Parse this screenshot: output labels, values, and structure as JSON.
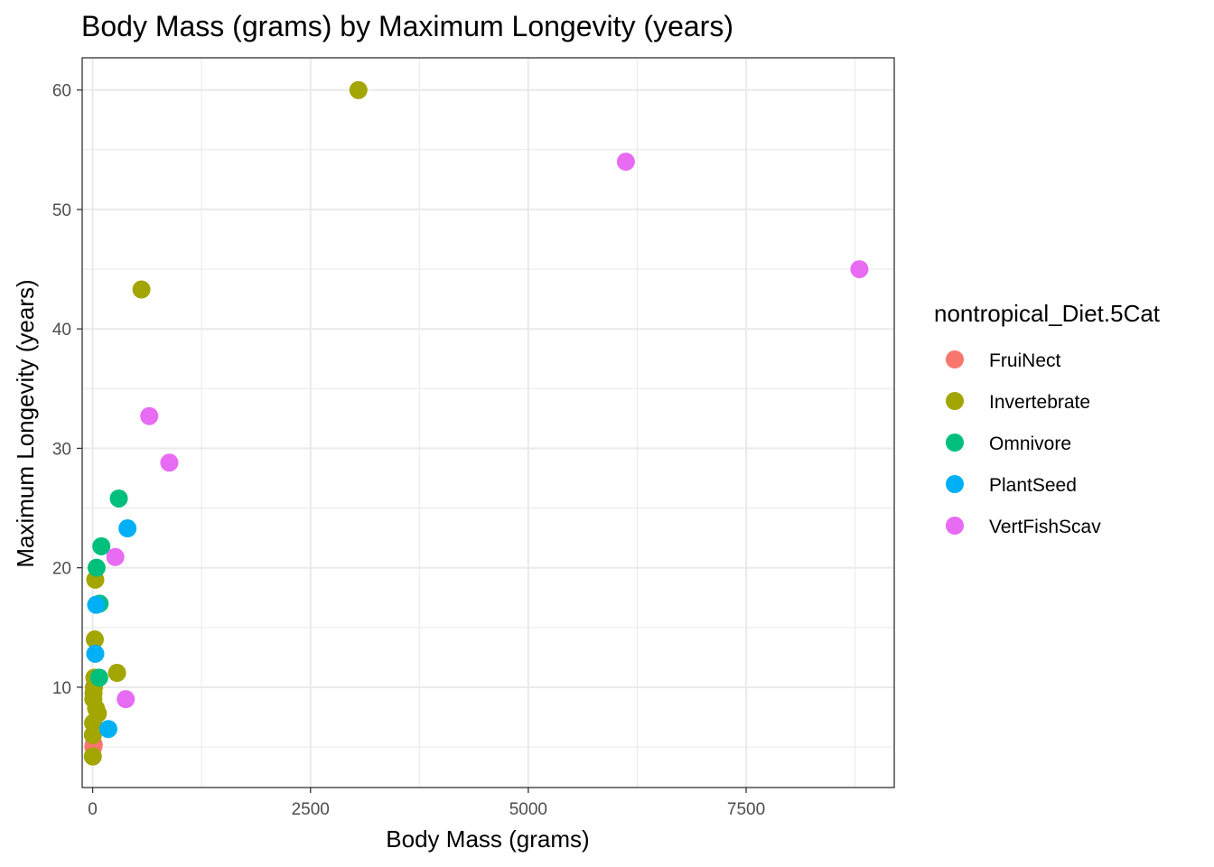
{
  "chart_data": {
    "type": "scatter",
    "title": "Body Mass (grams) by Maximum Longevity (years)",
    "xlabel": "Body Mass (grams)",
    "ylabel": "Maximum Longevity (years)",
    "xlim": [
      -120,
      9200
    ],
    "ylim": [
      1.6,
      62.7
    ],
    "x_ticks": [
      0,
      2500,
      5000,
      7500
    ],
    "y_ticks": [
      10,
      20,
      30,
      40,
      50,
      60
    ],
    "x_tick_labels": [
      "0",
      "2500",
      "5000",
      "7500"
    ],
    "y_tick_labels": [
      "10",
      "20",
      "30",
      "40",
      "50",
      "60"
    ],
    "grid": true,
    "legend": {
      "title": "nontropical_Diet.5Cat",
      "position": "right"
    },
    "series": [
      {
        "name": "FruiNect",
        "color": "#F8766D",
        "points": [
          [
            8,
            5.0
          ],
          [
            12,
            5.2
          ]
        ]
      },
      {
        "name": "Invertebrate",
        "color": "#A3A500",
        "points": [
          [
            3050,
            60
          ],
          [
            560,
            43.3
          ],
          [
            30,
            19
          ],
          [
            25,
            14
          ],
          [
            20,
            10.8
          ],
          [
            15,
            10
          ],
          [
            10,
            9.5
          ],
          [
            8,
            9
          ],
          [
            40,
            8.2
          ],
          [
            60,
            7.8
          ],
          [
            5,
            7
          ],
          [
            3,
            6
          ],
          [
            2,
            4.2
          ],
          [
            280,
            11.2
          ]
        ]
      },
      {
        "name": "Omnivore",
        "color": "#00BF7D",
        "points": [
          [
            300,
            25.8
          ],
          [
            100,
            21.8
          ],
          [
            45,
            20
          ],
          [
            80,
            17
          ],
          [
            75,
            10.8
          ]
        ]
      },
      {
        "name": "PlantSeed",
        "color": "#00B0F6",
        "points": [
          [
            400,
            23.3
          ],
          [
            40,
            16.9
          ],
          [
            30,
            12.8
          ],
          [
            180,
            6.5
          ]
        ]
      },
      {
        "name": "VertFishScav",
        "color": "#E76BF3",
        "points": [
          [
            6120,
            54
          ],
          [
            8800,
            45
          ],
          [
            650,
            32.7
          ],
          [
            880,
            28.8
          ],
          [
            260,
            20.9
          ],
          [
            380,
            9
          ]
        ]
      }
    ]
  }
}
